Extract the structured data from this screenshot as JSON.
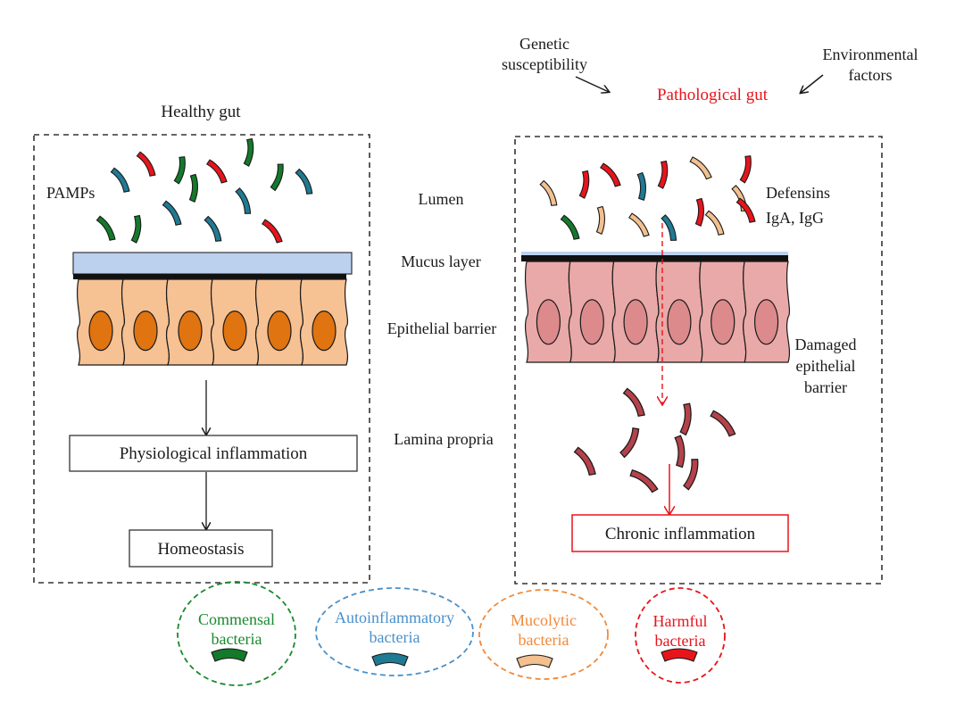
{
  "top": {
    "genetic": [
      "Genetic",
      "susceptibility"
    ],
    "environmental": [
      "Environmental",
      "factors"
    ],
    "pathological_title": "Pathological gut"
  },
  "healthy": {
    "title": "Healthy gut",
    "pamps_label": "PAMPs",
    "physiological_box": "Physiological inflammation",
    "homeostasis_box": "Homeostasis"
  },
  "middle": {
    "lumen": "Lumen",
    "mucus": "Mucus layer",
    "epithelial": "Epithelial barrier",
    "lamina": "Lamina propria"
  },
  "pathological": {
    "defensins": [
      "Defensins",
      "IgA, IgG"
    ],
    "damaged": [
      "Damaged",
      "epithelial",
      "barrier"
    ],
    "chronic_box": "Chronic inflammation"
  },
  "legend": [
    {
      "line1": "Commensal",
      "line2": "bacteria",
      "color": "#1a8a2e",
      "swatch": "#137a2a"
    },
    {
      "line1": "Autoinflammatory",
      "line2": "bacteria",
      "color": "#4a90c9",
      "swatch": "#1f7a93"
    },
    {
      "line1": "Mucolytic",
      "line2": "bacteria",
      "color": "#f08a3c",
      "swatch": "#f3c08f"
    },
    {
      "line1": "Harmful",
      "line2": "bacteria",
      "color": "#e8141b",
      "swatch": "#e8141b"
    }
  ],
  "colors": {
    "commensal": "#137a2a",
    "autoinflammatory": "#1f7a93",
    "mucolytic": "#f3c08f",
    "harmful": "#e8141b",
    "damaged_bacteria": "#b5424a",
    "healthy_cell": "#f6c193",
    "healthy_nucleus": "#e07410",
    "damaged_cell": "#e9a9a8",
    "damaged_nucleus": "#dc8a8c",
    "mucus": "#bcd1ee"
  }
}
